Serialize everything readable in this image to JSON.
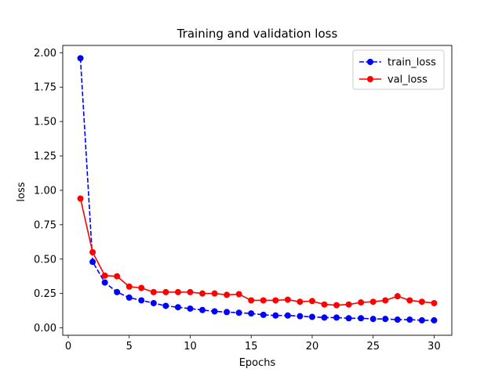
{
  "chart_data": {
    "type": "line",
    "title": "Training and validation loss",
    "xlabel": "Epochs",
    "ylabel": "loss",
    "xlim": [
      -0.45,
      31.45
    ],
    "ylim": [
      -0.0537,
      2.0531
    ],
    "xticks": [
      0,
      5,
      10,
      15,
      20,
      25,
      30
    ],
    "yticks": [
      0.0,
      0.25,
      0.5,
      0.75,
      1.0,
      1.25,
      1.5,
      1.75,
      2.0
    ],
    "ytick_labels": [
      "0.00",
      "0.25",
      "0.50",
      "0.75",
      "1.00",
      "1.25",
      "1.50",
      "1.75",
      "2.00"
    ],
    "legend_position": "top-right",
    "x": [
      1,
      2,
      3,
      4,
      5,
      6,
      7,
      8,
      9,
      10,
      11,
      12,
      13,
      14,
      15,
      16,
      17,
      18,
      19,
      20,
      21,
      22,
      23,
      24,
      25,
      26,
      27,
      28,
      29,
      30
    ],
    "series": [
      {
        "name": "train_loss",
        "color": "#0000ff",
        "linestyle": "dashed",
        "values": [
          1.96,
          0.48,
          0.33,
          0.26,
          0.22,
          0.2,
          0.18,
          0.16,
          0.15,
          0.14,
          0.13,
          0.12,
          0.115,
          0.11,
          0.105,
          0.095,
          0.09,
          0.09,
          0.085,
          0.08,
          0.075,
          0.075,
          0.07,
          0.07,
          0.065,
          0.065,
          0.06,
          0.06,
          0.055,
          0.055
        ]
      },
      {
        "name": "val_loss",
        "color": "#ff0000",
        "linestyle": "solid",
        "values": [
          0.94,
          0.55,
          0.38,
          0.375,
          0.3,
          0.29,
          0.26,
          0.26,
          0.26,
          0.26,
          0.25,
          0.25,
          0.24,
          0.245,
          0.2,
          0.2,
          0.2,
          0.205,
          0.19,
          0.195,
          0.17,
          0.165,
          0.17,
          0.185,
          0.19,
          0.2,
          0.23,
          0.2,
          0.19,
          0.18
        ]
      }
    ]
  }
}
